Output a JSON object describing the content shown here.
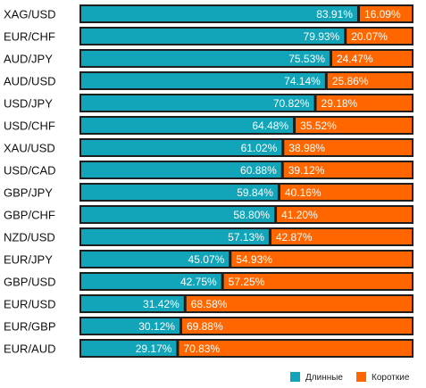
{
  "colors": {
    "long": "#12a4b8",
    "short": "#ff6600",
    "track": "#1e1e1e"
  },
  "chart_data": {
    "type": "bar",
    "orientation": "horizontal",
    "stacked": true,
    "categories": [
      "XAG/USD",
      "EUR/CHF",
      "AUD/JPY",
      "AUD/USD",
      "USD/JPY",
      "USD/CHF",
      "XAU/USD",
      "USD/CAD",
      "GBP/JPY",
      "GBP/CHF",
      "NZD/USD",
      "EUR/JPY",
      "GBP/USD",
      "EUR/USD",
      "EUR/GBP",
      "EUR/AUD"
    ],
    "series": [
      {
        "name": "Длинные",
        "values": [
          83.91,
          79.93,
          75.53,
          74.14,
          70.82,
          64.48,
          61.02,
          60.88,
          59.84,
          58.8,
          57.13,
          45.07,
          42.75,
          31.42,
          30.12,
          29.17
        ]
      },
      {
        "name": "Короткие",
        "values": [
          16.09,
          20.07,
          24.47,
          25.86,
          29.18,
          35.52,
          38.98,
          39.12,
          40.16,
          41.2,
          42.87,
          54.93,
          57.25,
          68.58,
          69.88,
          70.83
        ]
      }
    ],
    "value_unit": "%",
    "xlim": [
      0,
      100
    ],
    "legend": "bottom-right",
    "grid": false
  }
}
